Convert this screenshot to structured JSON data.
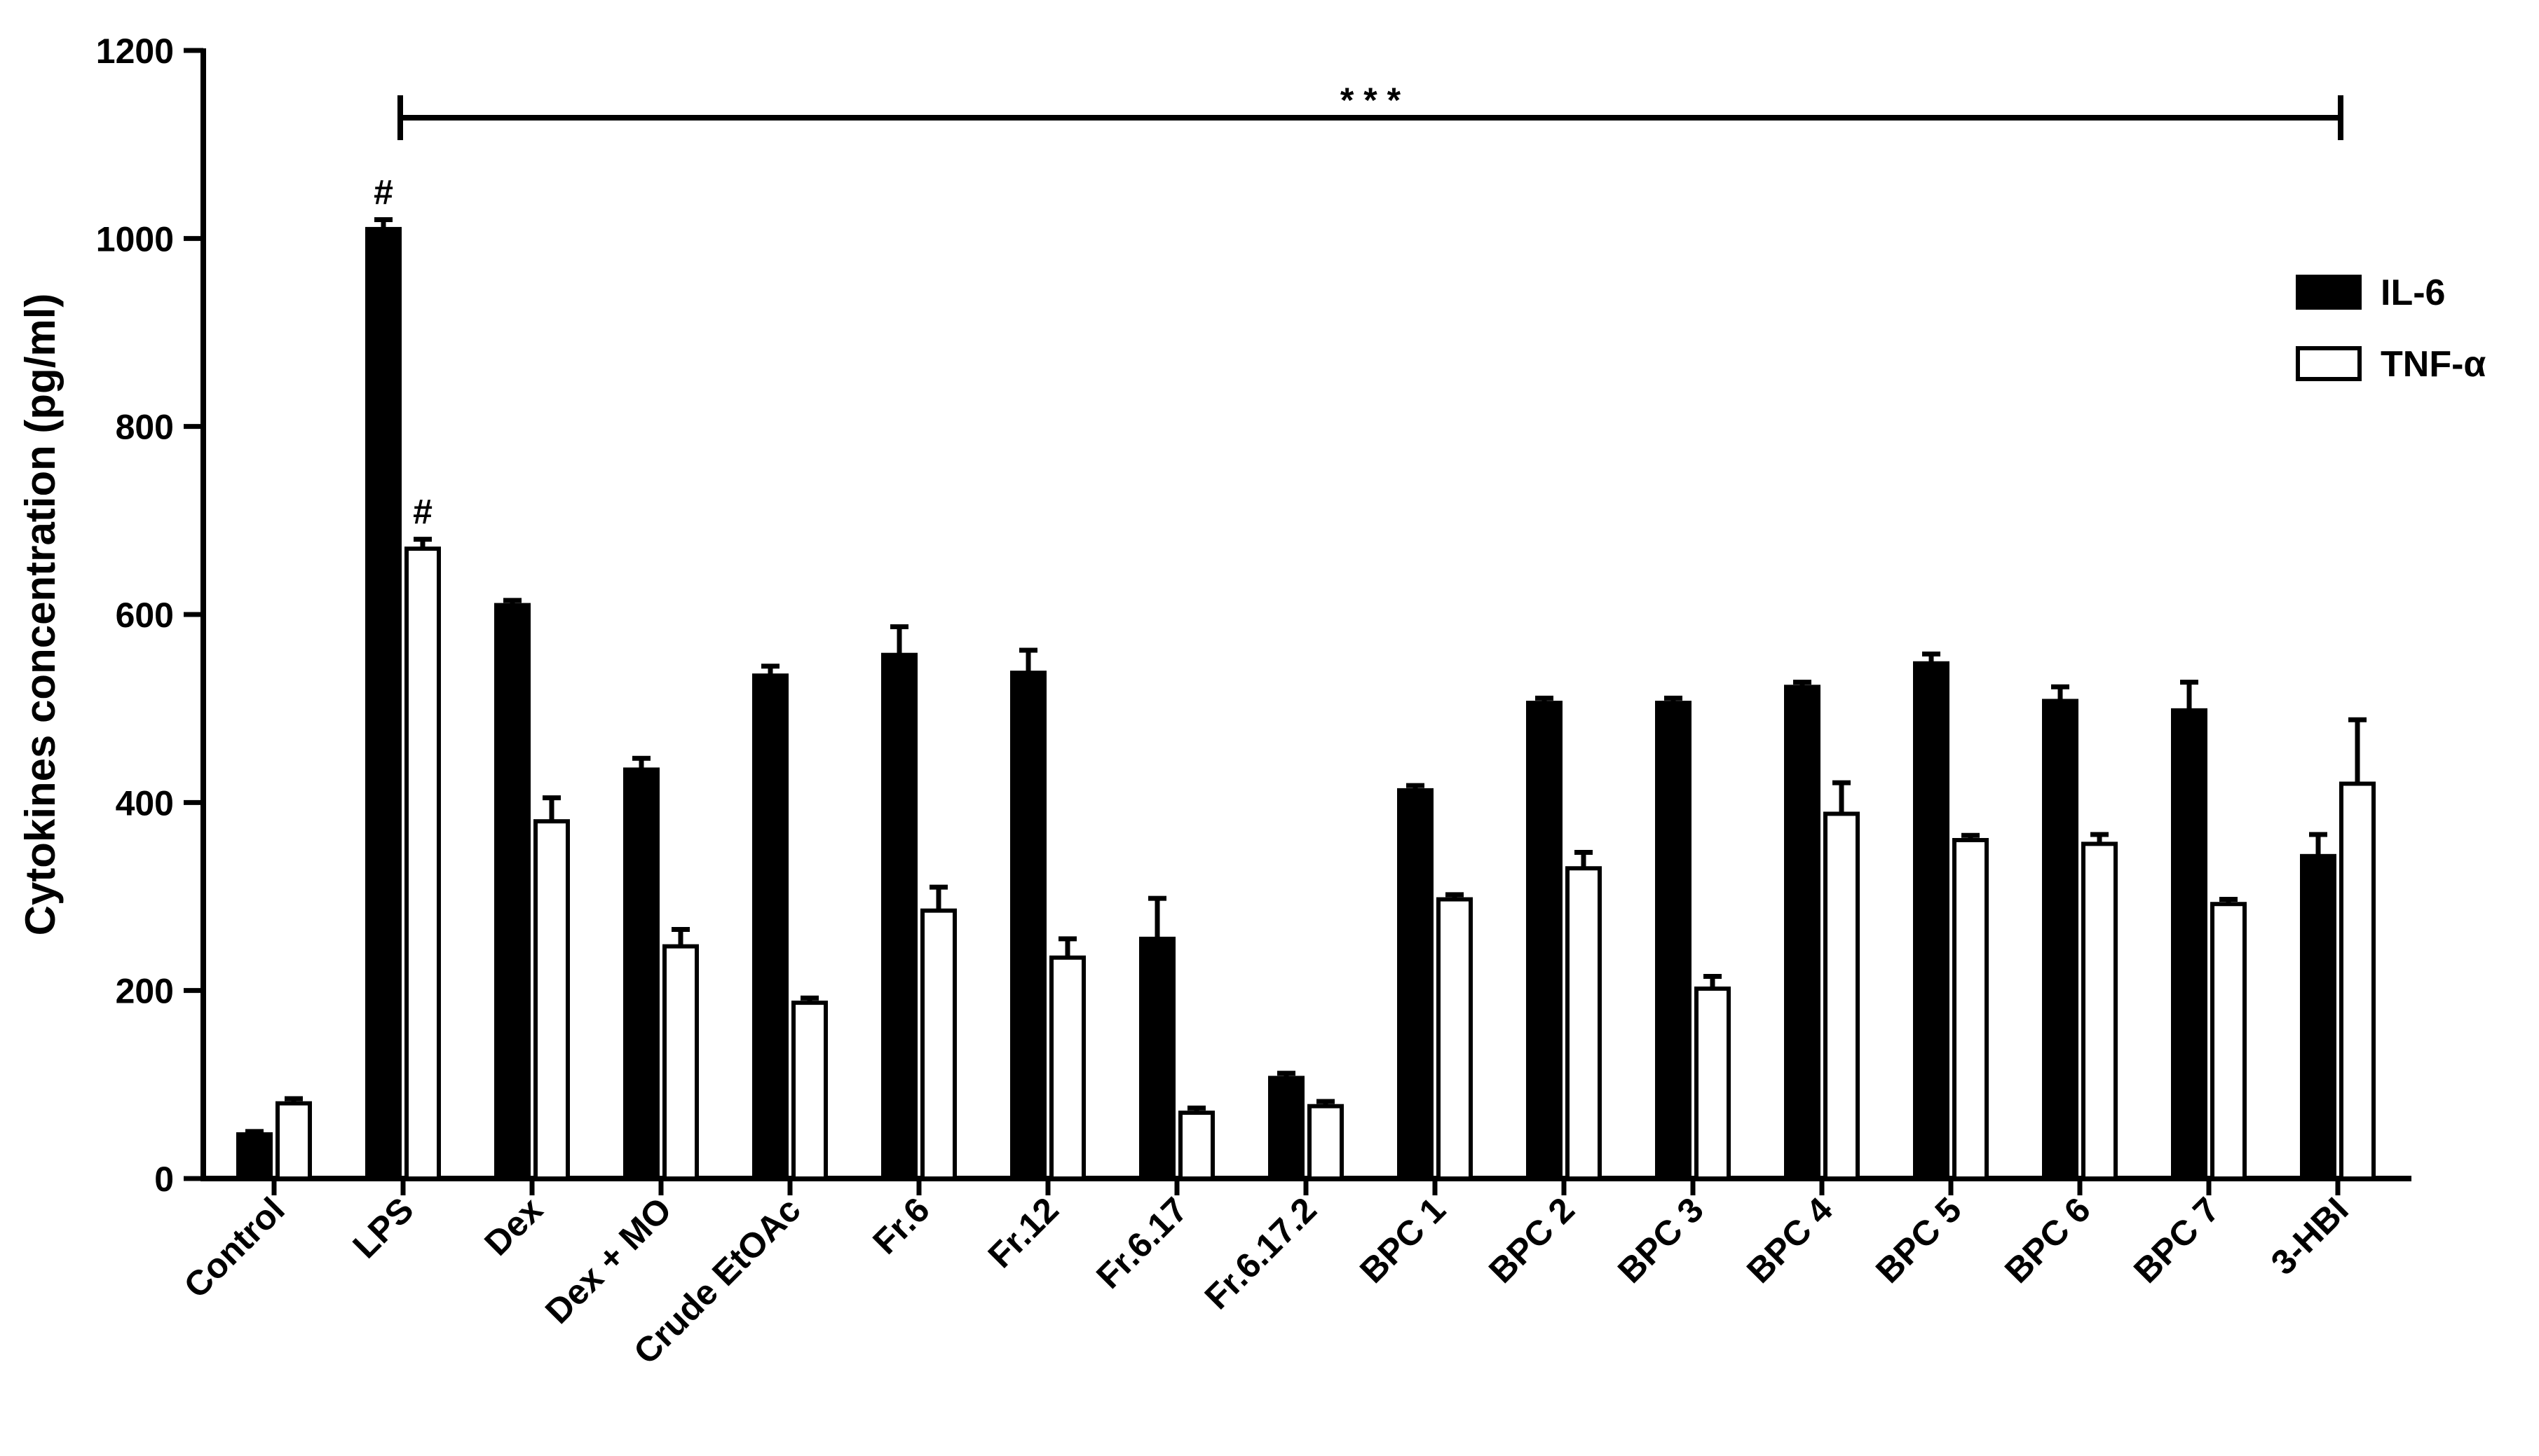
{
  "chart_data": {
    "type": "bar",
    "ylabel": "Cytokines concentration (pg/ml)",
    "xlabel": "",
    "ylim": [
      0,
      1200
    ],
    "yticks": [
      0,
      200,
      400,
      600,
      800,
      1000,
      1200
    ],
    "categories": [
      "Control",
      "LPS",
      "Dex",
      "Dex + MO",
      "Crude EtOAc",
      "Fr.6",
      "Fr.12",
      "Fr.6.17",
      "Fr.6.17.2",
      "BPC 1",
      "BPC 2",
      "BPC 3",
      "BPC 4",
      "BPC 5",
      "BPC 6",
      "BPC 7",
      "3-HBI"
    ],
    "series": [
      {
        "name": "IL-6",
        "color": "#000000",
        "values": [
          47,
          1010,
          610,
          435,
          535,
          557,
          538,
          255,
          107,
          413,
          506,
          506,
          523,
          548,
          508,
          498,
          343
        ],
        "errors": [
          3,
          10,
          5,
          12,
          10,
          30,
          24,
          43,
          5,
          5,
          5,
          5,
          5,
          10,
          15,
          30,
          23
        ]
      },
      {
        "name": "TNF-α",
        "color": "#ffffff",
        "values": [
          80,
          670,
          380,
          247,
          187,
          285,
          235,
          70,
          77,
          297,
          330,
          202,
          388,
          360,
          356,
          292,
          420
        ],
        "errors": [
          5,
          10,
          25,
          18,
          5,
          25,
          20,
          5,
          5,
          5,
          17,
          13,
          33,
          5,
          10,
          5,
          68
        ]
      }
    ],
    "legend_position": "top-right",
    "grid": false,
    "annotations": {
      "significance_label": "* * *",
      "significance_from": "LPS",
      "significance_to": "3-HBI",
      "hash_marker": "#",
      "hash_categories": [
        "LPS"
      ]
    }
  }
}
